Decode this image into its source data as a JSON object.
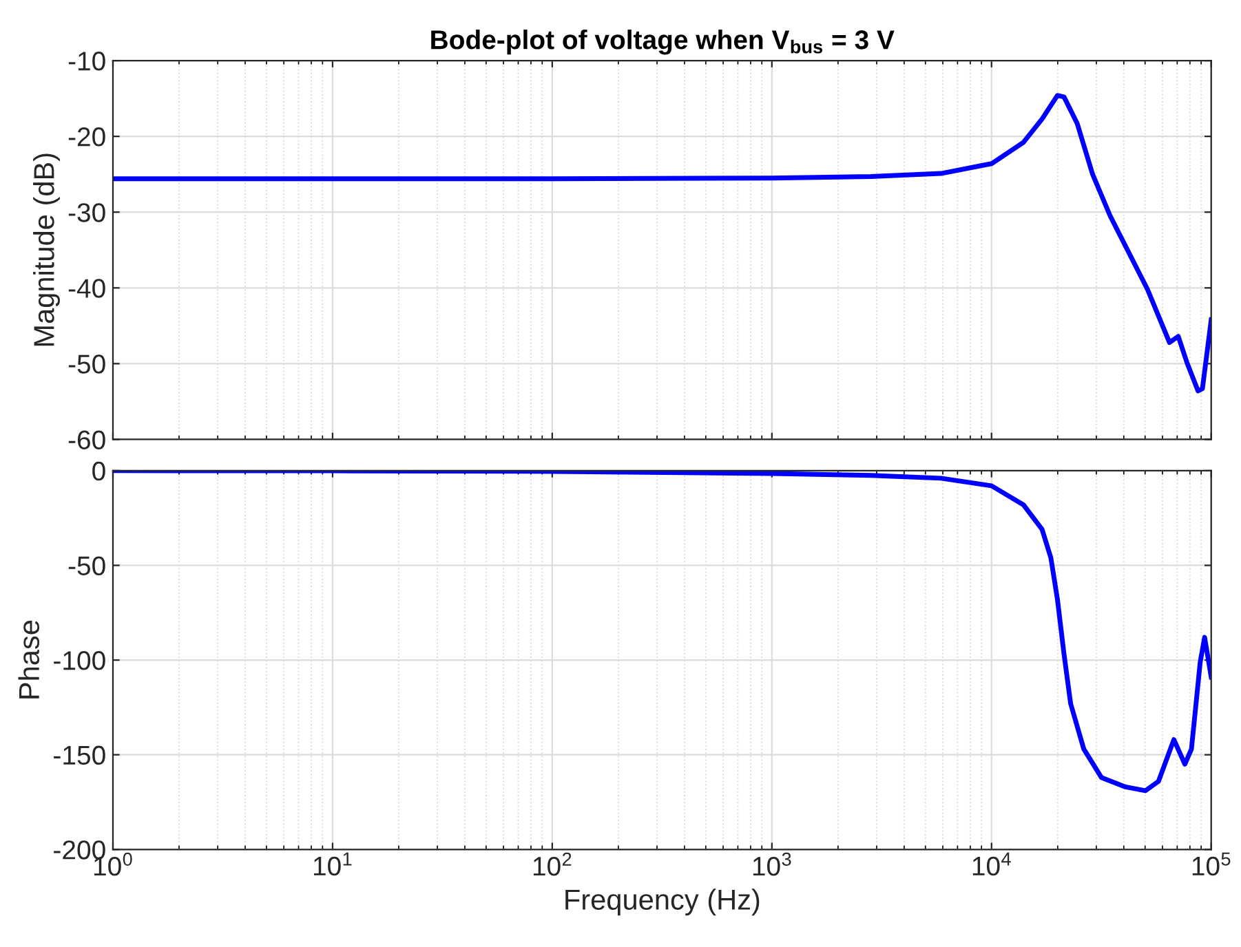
{
  "chart_data": [
    {
      "type": "line",
      "title": "Bode-plot of voltage when V$_{bus}$ = 3 V",
      "ylabel": "Magnitude (dB)",
      "log": "x",
      "grid": true,
      "tick_labels": "y",
      "xlim": [
        1,
        100000
      ],
      "xticks": [
        {
          "value": 1,
          "label": null
        },
        {
          "value": 10,
          "label": null
        },
        {
          "value": 100,
          "label": null
        },
        {
          "value": 1000,
          "label": null
        },
        {
          "value": 10000,
          "label": null
        },
        {
          "value": 100000,
          "label": null
        }
      ],
      "ylim": [
        -60,
        -10
      ],
      "yticks": [
        -60,
        -50,
        -40,
        -30,
        -20,
        -10
      ],
      "x": [
        1,
        10,
        100,
        1000,
        2818,
        5888,
        10000,
        13964,
        16982,
        19953,
        21380,
        24547,
        28840,
        34674,
        51286,
        64565,
        70795,
        77625,
        87096,
        91201,
        100000
      ],
      "series": [
        {
          "color": "#0000ff",
          "values": [
            -25.6,
            -25.6,
            -25.6,
            -25.5,
            -25.3,
            -24.9,
            -23.6,
            -20.8,
            -17.7,
            -14.6,
            -14.8,
            -18.3,
            -25.0,
            -30.5,
            -40.2,
            -47.2,
            -46.4,
            -49.9,
            -53.6,
            -53.3,
            -44.2
          ]
        }
      ]
    },
    {
      "type": "line",
      "xlabel": "Frequency (Hz)",
      "ylabel": "Phase",
      "log": "x",
      "grid": true,
      "xlim": [
        1,
        100000
      ],
      "xticks": [
        {
          "value": 1,
          "label": "10$^{0}$"
        },
        {
          "value": 10,
          "label": "10$^{1}$"
        },
        {
          "value": 100,
          "label": "10$^{2}$"
        },
        {
          "value": 1000,
          "label": "10$^{3}$"
        },
        {
          "value": 10000,
          "label": "10$^{4}$"
        },
        {
          "value": 100000,
          "label": "10$^{5}$"
        }
      ],
      "ylim": [
        -200,
        0
      ],
      "yticks": [
        -200,
        -150,
        -100,
        -50,
        0
      ],
      "x": [
        1,
        10,
        100,
        1000,
        2818,
        5888,
        10000,
        13964,
        16982,
        18621,
        19953,
        21380,
        22909,
        26303,
        31623,
        40738,
        50119,
        57544,
        67608,
        75858,
        81283,
        89125,
        93325,
        100000
      ],
      "series": [
        {
          "color": "#0000ff",
          "values": [
            0,
            -0.1,
            -0.4,
            -1.5,
            -2.5,
            -4,
            -8,
            -18,
            -31,
            -46,
            -68,
            -97,
            -123,
            -147,
            -162,
            -167,
            -169,
            -164,
            -142,
            -155,
            -147,
            -101,
            -88,
            -109
          ]
        }
      ]
    }
  ]
}
